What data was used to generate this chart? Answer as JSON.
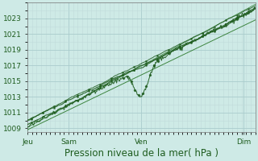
{
  "background_color": "#ceeae6",
  "plot_bg_color": "#ceeae6",
  "grid_major_color": "#aacccc",
  "grid_minor_color": "#c0dada",
  "line_color_dark": "#1e5c1e",
  "line_color_med": "#2d7a2d",
  "ylim": [
    1008.5,
    1025.0
  ],
  "yticks": [
    1009,
    1011,
    1013,
    1015,
    1017,
    1019,
    1021,
    1023
  ],
  "xtick_labels": [
    "Jeu",
    "Sam",
    "Ven",
    "Dim"
  ],
  "xtick_positions": [
    0.0,
    0.18,
    0.5,
    0.95
  ],
  "xlabel": "Pression niveau de la mer( hPa )",
  "tick_label_color": "#1e5c1e",
  "tick_label_fontsize": 6.5,
  "xlabel_fontsize": 8.5,
  "xlabel_color": "#1e5c1e"
}
